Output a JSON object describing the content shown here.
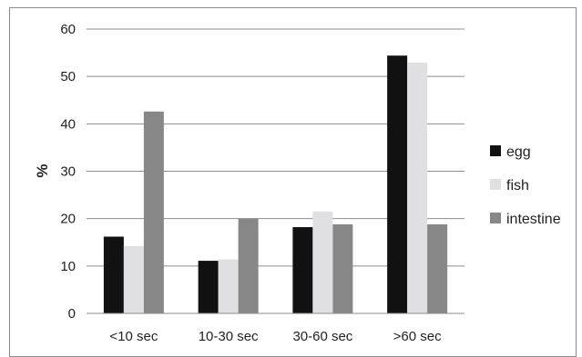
{
  "chart_data": {
    "type": "bar",
    "title": "",
    "xlabel": "",
    "ylabel": "%",
    "ylim": [
      0,
      60
    ],
    "yticks": [
      0,
      10,
      20,
      30,
      40,
      50,
      60
    ],
    "grid": true,
    "legend_position": "right",
    "categories": [
      "<10 sec",
      "10-30 sec",
      "30-60 sec",
      ">60 sec"
    ],
    "series": [
      {
        "name": "egg",
        "color": "#111111",
        "values": [
          16.2,
          11.1,
          18.2,
          54.4
        ]
      },
      {
        "name": "fish",
        "color": "#e0e0e2",
        "values": [
          14.2,
          11.4,
          21.5,
          52.9
        ]
      },
      {
        "name": "intestine",
        "color": "#878787",
        "values": [
          42.6,
          20.0,
          18.8,
          18.8
        ]
      }
    ]
  }
}
